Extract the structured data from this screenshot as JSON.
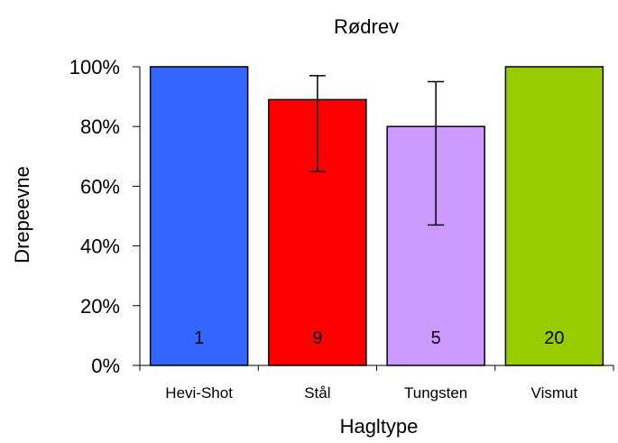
{
  "chart_data": {
    "type": "bar",
    "title": "Rødrev",
    "xlabel": "Hagltype",
    "ylabel": "Drepeevne",
    "categories": [
      "Hevi-Shot",
      "Stål",
      "Tungsten",
      "Vismut"
    ],
    "values": [
      100,
      89,
      80,
      100
    ],
    "error_low": [
      null,
      65,
      47,
      null
    ],
    "error_high": [
      null,
      97,
      95,
      null
    ],
    "counts": [
      "1",
      "9",
      "5",
      "20"
    ],
    "colors": [
      "#3366ff",
      "#ff0000",
      "#cc99ff",
      "#99cc00"
    ],
    "ylim": [
      0,
      100
    ],
    "yticks": [
      0,
      20,
      40,
      60,
      80,
      100
    ],
    "ytick_labels": [
      "0%",
      "20%",
      "40%",
      "60%",
      "80%",
      "100%"
    ],
    "grid": false,
    "legend": "none"
  }
}
